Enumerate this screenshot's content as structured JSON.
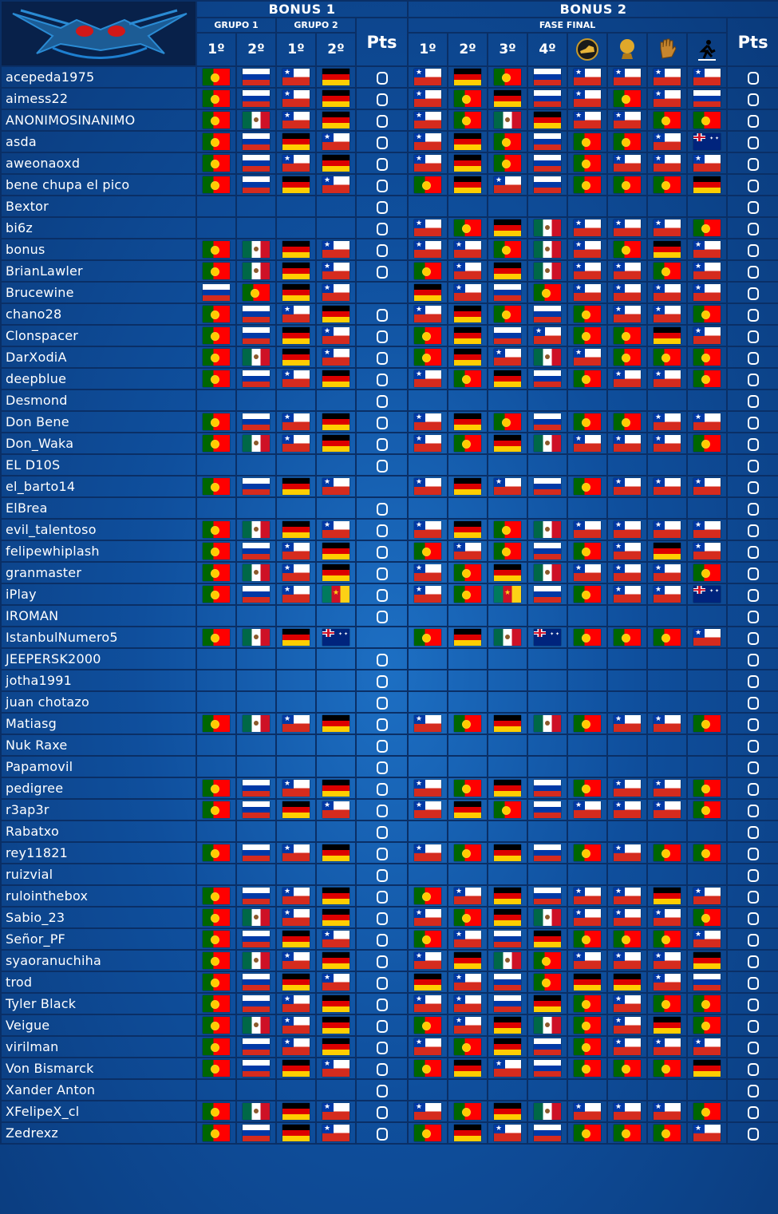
{
  "header": {
    "bonus1": "BONUS 1",
    "bonus2": "BONUS 2",
    "grupo1": "GRUPO 1",
    "grupo2": "GRUPO 2",
    "fase_final": "FASE FINAL",
    "pts": "Pts",
    "b1_cols": [
      "1º",
      "2º",
      "1º",
      "2º"
    ],
    "b2_cols": [
      "1º",
      "2º",
      "3º",
      "4º"
    ],
    "award_icons": [
      "golden-boot-icon",
      "golden-ball-icon",
      "golden-glove-icon",
      "fair-play-icon"
    ]
  },
  "colors": {
    "background": "#0f4f9d",
    "border": "#0a2f66",
    "text": "#ffffff"
  },
  "rows": [
    {
      "name": "acepeda1975",
      "b1": [
        "POR",
        "RUS",
        "CHL",
        "GER"
      ],
      "b2": [
        "CHL",
        "GER",
        "POR",
        "RUS",
        "CHL",
        "CHL",
        "CHL",
        "CHL"
      ]
    },
    {
      "name": "aimess22",
      "b1": [
        "POR",
        "RUS",
        "CHL",
        "GER"
      ],
      "b2": [
        "CHL",
        "POR",
        "GER",
        "RUS",
        "CHL",
        "POR",
        "CHL",
        "RUS"
      ]
    },
    {
      "name": "ANONIMOSINANIMO",
      "b1": [
        "POR",
        "MEX",
        "CHL",
        "GER"
      ],
      "b2": [
        "CHL",
        "POR",
        "MEX",
        "GER",
        "CHL",
        "CHL",
        "POR",
        "POR"
      ]
    },
    {
      "name": "asda",
      "b1": [
        "POR",
        "RUS",
        "GER",
        "CHL"
      ],
      "b2": [
        "CHL",
        "GER",
        "POR",
        "RUS",
        "POR",
        "POR",
        "CHL",
        "AUS"
      ]
    },
    {
      "name": "aweonaoxd",
      "b1": [
        "POR",
        "RUS",
        "CHL",
        "GER"
      ],
      "b2": [
        "CHL",
        "GER",
        "POR",
        "RUS",
        "POR",
        "CHL",
        "CHL",
        "CHL"
      ]
    },
    {
      "name": "bene chupa el pico",
      "b1": [
        "POR",
        "RUS",
        "GER",
        "CHL"
      ],
      "b2": [
        "POR",
        "GER",
        "CHL",
        "RUS",
        "POR",
        "POR",
        "POR",
        "GER"
      ]
    },
    {
      "name": "Bextor",
      "b1": [
        "",
        "",
        "",
        ""
      ],
      "b2": [
        "",
        "",
        "",
        "",
        "",
        "",
        "",
        ""
      ]
    },
    {
      "name": "bi6z",
      "b1": [
        "",
        "",
        "",
        ""
      ],
      "b2": [
        "CHL",
        "POR",
        "GER",
        "MEX",
        "CHL",
        "CHL",
        "CHL",
        "POR"
      ]
    },
    {
      "name": "bonus",
      "b1": [
        "POR",
        "MEX",
        "GER",
        "CHL"
      ],
      "b2": [
        "CHL",
        "CHL",
        "POR",
        "MEX",
        "CHL",
        "POR",
        "GER",
        "CHL"
      ]
    },
    {
      "name": "BrianLawler",
      "b1": [
        "POR",
        "MEX",
        "GER",
        "CHL"
      ],
      "b2": [
        "POR",
        "CHL",
        "GER",
        "MEX",
        "CHL",
        "CHL",
        "POR",
        "CHL"
      ]
    },
    {
      "name": "Brucewine",
      "b1": [
        "RUS",
        "POR",
        "GER",
        "CHL"
      ],
      "b2": [
        "GER",
        "CHL",
        "RUS",
        "POR",
        "CHL",
        "CHL",
        "CHL",
        "CHL"
      ]
    },
    {
      "name": "chano28",
      "b1": [
        "POR",
        "RUS",
        "CHL",
        "GER"
      ],
      "b2": [
        "CHL",
        "GER",
        "POR",
        "RUS",
        "POR",
        "CHL",
        "CHL",
        "POR"
      ]
    },
    {
      "name": "Clonspacer",
      "b1": [
        "POR",
        "RUS",
        "GER",
        "CHL"
      ],
      "b2": [
        "POR",
        "GER",
        "RUS",
        "CHL",
        "POR",
        "POR",
        "GER",
        "CHL"
      ]
    },
    {
      "name": "DarXodiA",
      "b1": [
        "POR",
        "MEX",
        "GER",
        "CHL"
      ],
      "b2": [
        "POR",
        "GER",
        "CHL",
        "MEX",
        "CHL",
        "POR",
        "POR",
        "POR"
      ]
    },
    {
      "name": "deepblue",
      "b1": [
        "POR",
        "RUS",
        "CHL",
        "GER"
      ],
      "b2": [
        "CHL",
        "POR",
        "GER",
        "RUS",
        "POR",
        "CHL",
        "CHL",
        "POR"
      ]
    },
    {
      "name": "Desmond",
      "b1": [
        "",
        "",
        "",
        ""
      ],
      "b2": [
        "",
        "",
        "",
        "",
        "",
        "",
        "",
        ""
      ]
    },
    {
      "name": "Don Bene",
      "b1": [
        "POR",
        "RUS",
        "CHL",
        "GER"
      ],
      "b2": [
        "CHL",
        "GER",
        "POR",
        "RUS",
        "POR",
        "POR",
        "CHL",
        "CHL"
      ]
    },
    {
      "name": "Don_Waka",
      "b1": [
        "POR",
        "MEX",
        "CHL",
        "GER"
      ],
      "b2": [
        "CHL",
        "POR",
        "GER",
        "MEX",
        "CHL",
        "CHL",
        "CHL",
        "POR"
      ]
    },
    {
      "name": "EL D10S",
      "b1": [
        "",
        "",
        "",
        ""
      ],
      "b2": [
        "",
        "",
        "",
        "",
        "",
        "",
        "",
        ""
      ]
    },
    {
      "name": "el_barto14",
      "b1": [
        "POR",
        "RUS",
        "GER",
        "CHL"
      ],
      "b2": [
        "CHL",
        "GER",
        "CHL",
        "RUS",
        "POR",
        "CHL",
        "CHL",
        "CHL"
      ]
    },
    {
      "name": "ElBrea",
      "b1": [
        "",
        "",
        "",
        ""
      ],
      "b2": [
        "",
        "",
        "",
        "",
        "",
        "",
        "",
        ""
      ]
    },
    {
      "name": "evil_talentoso",
      "b1": [
        "POR",
        "MEX",
        "GER",
        "CHL"
      ],
      "b2": [
        "CHL",
        "GER",
        "POR",
        "MEX",
        "CHL",
        "CHL",
        "CHL",
        "CHL"
      ]
    },
    {
      "name": "felipewhiplash",
      "b1": [
        "POR",
        "RUS",
        "CHL",
        "GER"
      ],
      "b2": [
        "POR",
        "CHL",
        "POR",
        "RUS",
        "POR",
        "CHL",
        "GER",
        "CHL"
      ]
    },
    {
      "name": "granmaster",
      "b1": [
        "POR",
        "MEX",
        "CHL",
        "GER"
      ],
      "b2": [
        "CHL",
        "POR",
        "GER",
        "MEX",
        "CHL",
        "CHL",
        "CHL",
        "POR"
      ]
    },
    {
      "name": "iPlay",
      "b1": [
        "POR",
        "RUS",
        "CHL",
        "CMR"
      ],
      "b2": [
        "CHL",
        "POR",
        "CMR",
        "RUS",
        "POR",
        "CHL",
        "CHL",
        "AUS"
      ]
    },
    {
      "name": "IROMAN",
      "b1": [
        "",
        "",
        "",
        ""
      ],
      "b2": [
        "",
        "",
        "",
        "",
        "",
        "",
        "",
        ""
      ]
    },
    {
      "name": "IstanbulNumero5",
      "b1": [
        "POR",
        "MEX",
        "GER",
        "AUS"
      ],
      "b2": [
        "POR",
        "GER",
        "MEX",
        "AUS",
        "POR",
        "POR",
        "POR",
        "CHL"
      ]
    },
    {
      "name": "JEEPERSK2000",
      "b1": [
        "",
        "",
        "",
        ""
      ],
      "b2": [
        "",
        "",
        "",
        "",
        "",
        "",
        "",
        ""
      ]
    },
    {
      "name": "jotha1991",
      "b1": [
        "",
        "",
        "",
        ""
      ],
      "b2": [
        "",
        "",
        "",
        "",
        "",
        "",
        "",
        ""
      ]
    },
    {
      "name": "juan chotazo",
      "b1": [
        "",
        "",
        "",
        ""
      ],
      "b2": [
        "",
        "",
        "",
        "",
        "",
        "",
        "",
        ""
      ]
    },
    {
      "name": "Matiasg",
      "b1": [
        "POR",
        "MEX",
        "CHL",
        "GER"
      ],
      "b2": [
        "CHL",
        "POR",
        "GER",
        "MEX",
        "POR",
        "CHL",
        "CHL",
        "POR"
      ]
    },
    {
      "name": "Nuk Raxe",
      "b1": [
        "",
        "",
        "",
        ""
      ],
      "b2": [
        "",
        "",
        "",
        "",
        "",
        "",
        "",
        ""
      ]
    },
    {
      "name": "Papamovil",
      "b1": [
        "",
        "",
        "",
        ""
      ],
      "b2": [
        "",
        "",
        "",
        "",
        "",
        "",
        "",
        ""
      ]
    },
    {
      "name": "pedigree",
      "b1": [
        "POR",
        "RUS",
        "CHL",
        "GER"
      ],
      "b2": [
        "CHL",
        "POR",
        "GER",
        "RUS",
        "POR",
        "CHL",
        "CHL",
        "POR"
      ]
    },
    {
      "name": "r3ap3r",
      "b1": [
        "POR",
        "RUS",
        "GER",
        "CHL"
      ],
      "b2": [
        "CHL",
        "GER",
        "POR",
        "RUS",
        "CHL",
        "CHL",
        "CHL",
        "POR"
      ]
    },
    {
      "name": "Rabatxo",
      "b1": [
        "",
        "",
        "",
        ""
      ],
      "b2": [
        "",
        "",
        "",
        "",
        "",
        "",
        "",
        ""
      ]
    },
    {
      "name": "rey11821",
      "b1": [
        "POR",
        "RUS",
        "CHL",
        "GER"
      ],
      "b2": [
        "CHL",
        "POR",
        "GER",
        "RUS",
        "POR",
        "CHL",
        "POR",
        "POR"
      ]
    },
    {
      "name": "ruizvial",
      "b1": [
        "",
        "",
        "",
        ""
      ],
      "b2": [
        "",
        "",
        "",
        "",
        "",
        "",
        "",
        ""
      ]
    },
    {
      "name": "rulointhebox",
      "b1": [
        "POR",
        "RUS",
        "CHL",
        "GER"
      ],
      "b2": [
        "POR",
        "CHL",
        "GER",
        "RUS",
        "CHL",
        "CHL",
        "GER",
        "CHL"
      ]
    },
    {
      "name": "Sabio_23",
      "b1": [
        "POR",
        "MEX",
        "CHL",
        "GER"
      ],
      "b2": [
        "CHL",
        "POR",
        "GER",
        "MEX",
        "CHL",
        "CHL",
        "CHL",
        "POR"
      ]
    },
    {
      "name": "Señor_PF",
      "b1": [
        "POR",
        "RUS",
        "GER",
        "CHL"
      ],
      "b2": [
        "POR",
        "CHL",
        "RUS",
        "GER",
        "POR",
        "POR",
        "POR",
        "CHL"
      ]
    },
    {
      "name": "syaoranuchiha",
      "b1": [
        "POR",
        "MEX",
        "CHL",
        "GER"
      ],
      "b2": [
        "CHL",
        "GER",
        "MEX",
        "POR",
        "CHL",
        "CHL",
        "CHL",
        "GER"
      ]
    },
    {
      "name": "trod",
      "b1": [
        "POR",
        "RUS",
        "GER",
        "CHL"
      ],
      "b2": [
        "GER",
        "CHL",
        "RUS",
        "POR",
        "GER",
        "GER",
        "CHL",
        "RUS"
      ]
    },
    {
      "name": "Tyler Black",
      "b1": [
        "POR",
        "RUS",
        "CHL",
        "GER"
      ],
      "b2": [
        "CHL",
        "CHL",
        "RUS",
        "GER",
        "POR",
        "CHL",
        "POR",
        "POR"
      ]
    },
    {
      "name": "Veigue",
      "b1": [
        "POR",
        "MEX",
        "CHL",
        "GER"
      ],
      "b2": [
        "POR",
        "CHL",
        "GER",
        "MEX",
        "POR",
        "CHL",
        "GER",
        "POR"
      ]
    },
    {
      "name": "virilman",
      "b1": [
        "POR",
        "RUS",
        "CHL",
        "GER"
      ],
      "b2": [
        "CHL",
        "POR",
        "GER",
        "RUS",
        "POR",
        "CHL",
        "CHL",
        "CHL"
      ]
    },
    {
      "name": "Von Bismarck",
      "b1": [
        "POR",
        "RUS",
        "GER",
        "CHL"
      ],
      "b2": [
        "POR",
        "GER",
        "CHL",
        "RUS",
        "POR",
        "POR",
        "POR",
        "GER"
      ]
    },
    {
      "name": "Xander Anton",
      "b1": [
        "",
        "",
        "",
        ""
      ],
      "b2": [
        "",
        "",
        "",
        "",
        "",
        "",
        "",
        ""
      ]
    },
    {
      "name": "XFelipeX_cl",
      "b1": [
        "POR",
        "MEX",
        "GER",
        "CHL"
      ],
      "b2": [
        "CHL",
        "POR",
        "GER",
        "MEX",
        "CHL",
        "CHL",
        "CHL",
        "POR"
      ]
    },
    {
      "name": "Zedrexz",
      "b1": [
        "POR",
        "RUS",
        "GER",
        "CHL"
      ],
      "b2": [
        "POR",
        "GER",
        "CHL",
        "RUS",
        "POR",
        "POR",
        "POR",
        "CHL"
      ]
    }
  ]
}
